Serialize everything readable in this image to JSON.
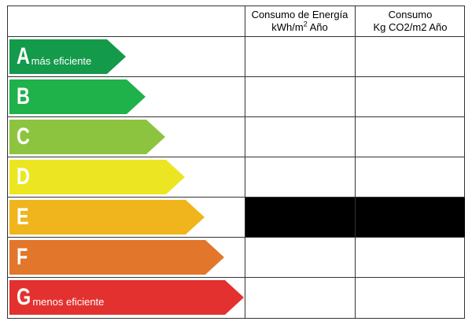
{
  "header": {
    "energy_line1": "Consumo de Energía",
    "energy_line2": "kWh/m",
    "energy_sup": "2",
    "energy_line2_tail": " Año",
    "co2_line1": "Consumo",
    "co2_line2": "Kg CO2/m2 Año"
  },
  "ratings": [
    {
      "letter": "A",
      "text": "más eficiente",
      "color": "#139a4a"
    },
    {
      "letter": "B",
      "text": "",
      "color": "#1fb14a"
    },
    {
      "letter": "C",
      "text": "",
      "color": "#8cc43f"
    },
    {
      "letter": "D",
      "text": "",
      "color": "#ece622"
    },
    {
      "letter": "E",
      "text": "",
      "color": "#f0b41c"
    },
    {
      "letter": "F",
      "text": "",
      "color": "#e2762a"
    },
    {
      "letter": "G",
      "text": "menos eficiente",
      "color": "#e3312f"
    }
  ],
  "highlighted_rating": "E",
  "colors": {
    "grid_line": "#333333",
    "highlight_fill": "#000000"
  }
}
